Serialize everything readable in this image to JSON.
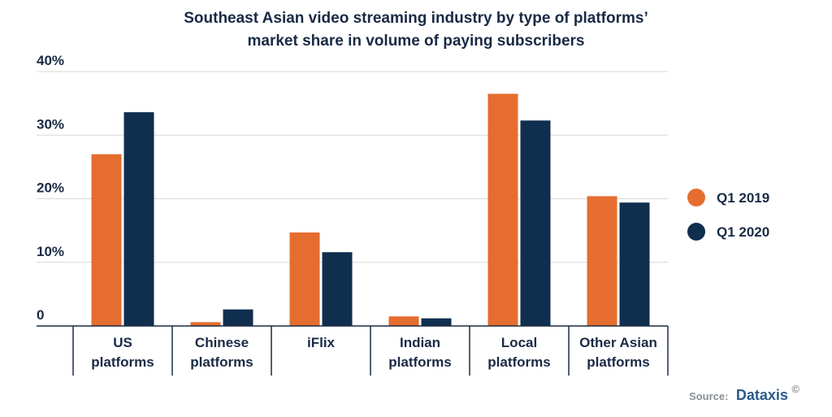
{
  "chart_data": {
    "type": "bar",
    "title_lines": [
      "Southeast Asian video streaming industry by type of platforms’",
      "market share in volume of paying subscribers"
    ],
    "categories": [
      [
        "US",
        "platforms"
      ],
      [
        "Chinese",
        "platforms"
      ],
      [
        "iFlix"
      ],
      [
        "Indian",
        "platforms"
      ],
      [
        "Local",
        "platforms"
      ],
      [
        "Other Asian",
        "platforms"
      ]
    ],
    "series": [
      {
        "name": "Q1 2019",
        "color": "#e56d2f",
        "values": [
          27,
          0.6,
          14.7,
          1.5,
          36.5,
          20.4
        ]
      },
      {
        "name": "Q1 2020",
        "color": "#102f4f",
        "values": [
          33.6,
          2.6,
          11.6,
          1.2,
          32.3,
          19.4
        ]
      }
    ],
    "y_ticks": [
      {
        "value": 0,
        "label": "0"
      },
      {
        "value": 10,
        "label": "10%"
      },
      {
        "value": 20,
        "label": "20%"
      },
      {
        "value": 30,
        "label": "30%"
      },
      {
        "value": 40,
        "label": "40%"
      }
    ],
    "ylim": [
      0,
      40
    ],
    "grid": true,
    "legend_position": "right",
    "source": {
      "prefix": "Source:",
      "brand": "Dataxis",
      "mark": "©"
    }
  }
}
